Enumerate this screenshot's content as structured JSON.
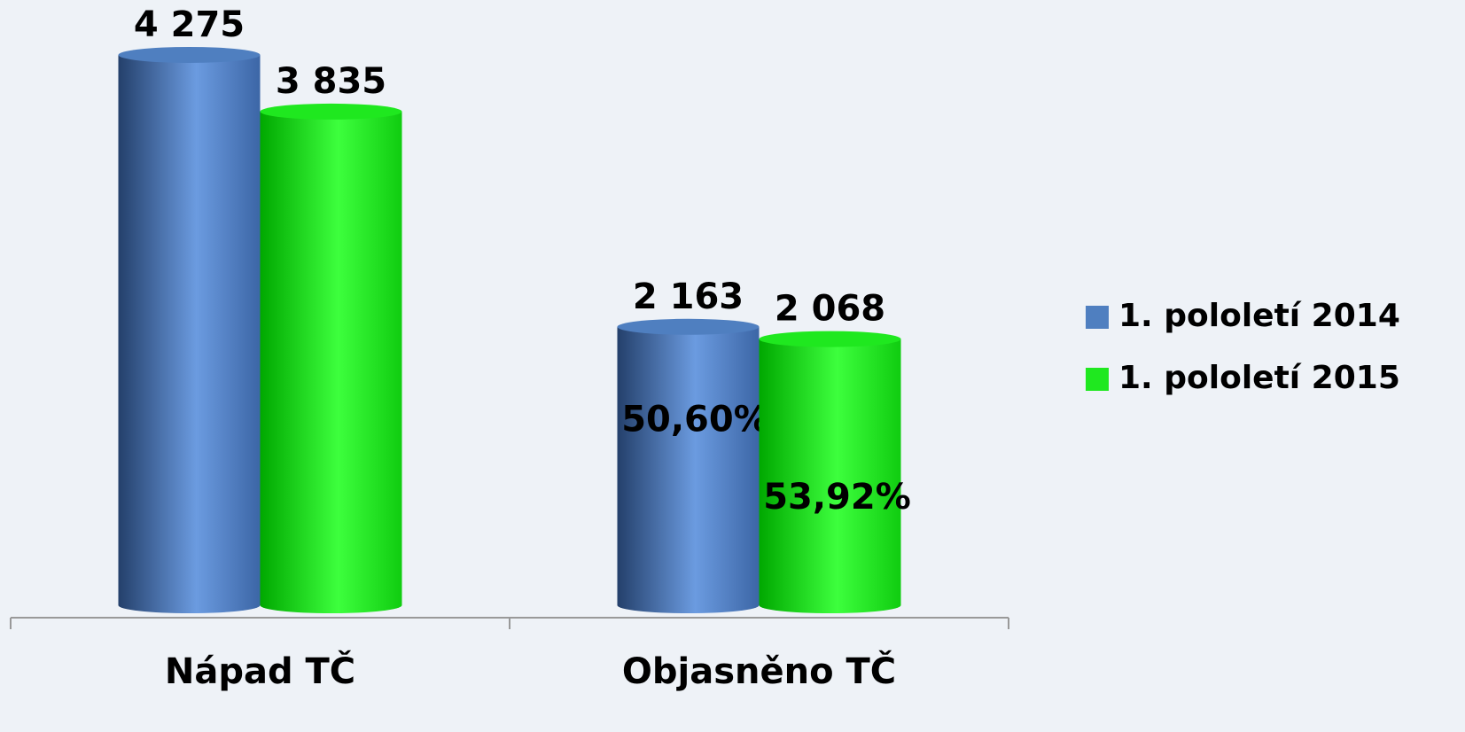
{
  "chart_data": {
    "type": "bar",
    "categories": [
      "Nápad TČ",
      "Objasněno TČ"
    ],
    "series": [
      {
        "name": "1. pololetí 2014",
        "color": "#4f7fc0",
        "values": [
          4275,
          2163
        ],
        "value_labels": [
          "4 275",
          "2 163"
        ],
        "percent_labels": [
          null,
          "50,60%"
        ]
      },
      {
        "name": "1. pololetí 2015",
        "color": "#1fe81f",
        "values": [
          3835,
          2068
        ],
        "value_labels": [
          "3 835",
          "2 068"
        ],
        "percent_labels": [
          null,
          "53,92%"
        ]
      }
    ],
    "ylim": [
      0,
      4500
    ],
    "legend": "right"
  }
}
